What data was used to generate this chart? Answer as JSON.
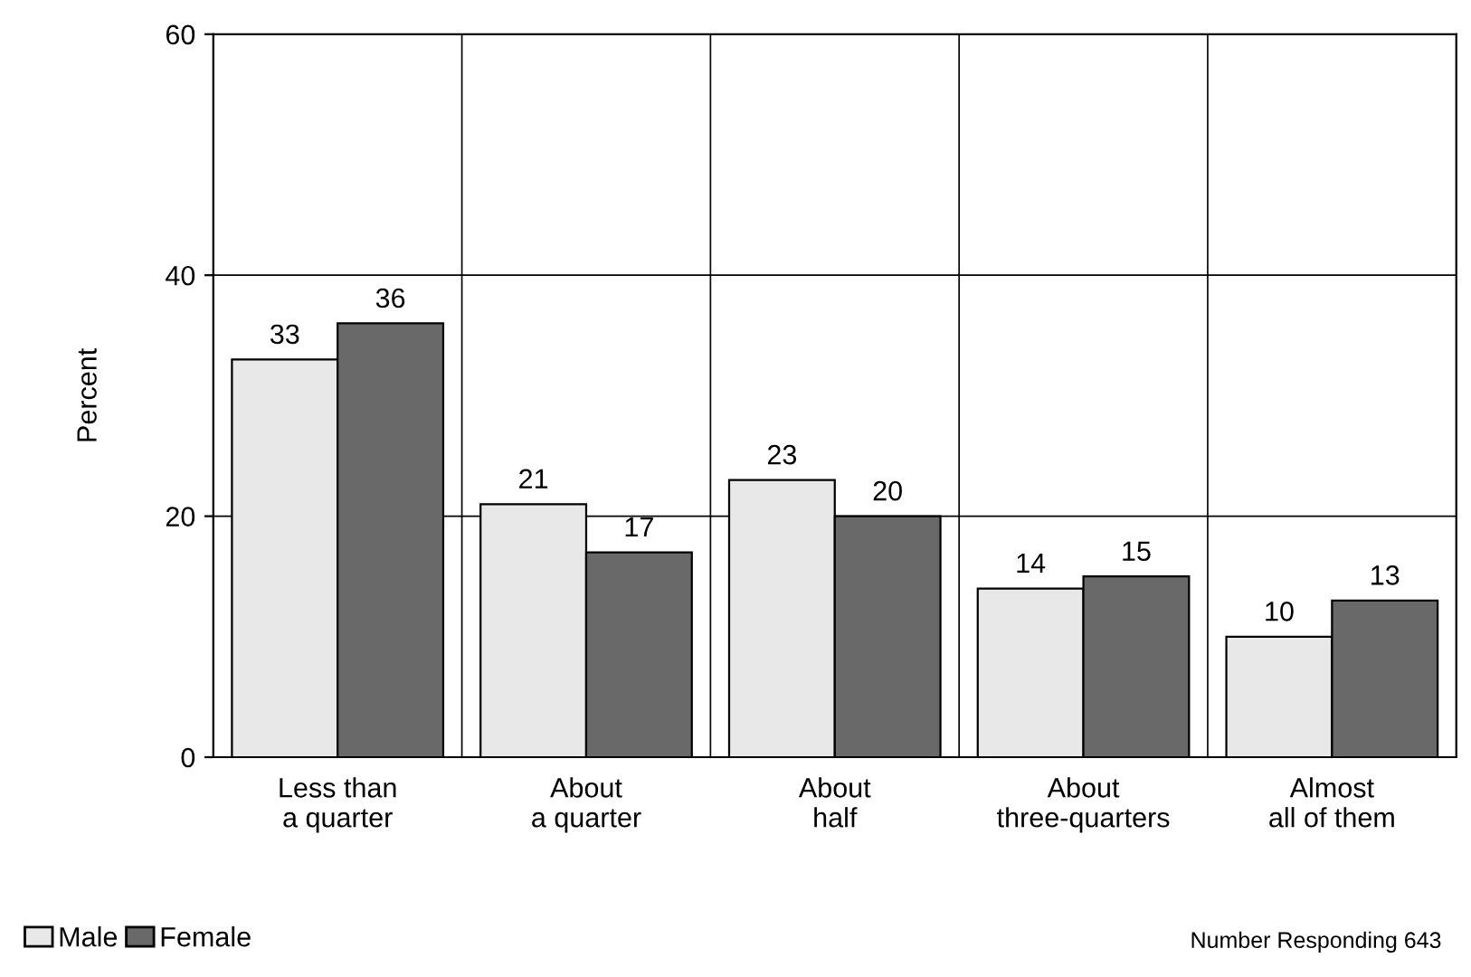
{
  "chart_data": {
    "type": "bar",
    "ylabel": "Percent",
    "categories": [
      "Less than\na quarter",
      "About\na quarter",
      "About\nhalf",
      "About\nthree-quarters",
      "Almost\nall of them"
    ],
    "series": [
      {
        "name": "Male",
        "color": "#e8e8e8",
        "values": [
          33,
          21,
          23,
          14,
          10
        ]
      },
      {
        "name": "Female",
        "color": "#696969",
        "values": [
          36,
          17,
          20,
          15,
          13
        ]
      }
    ],
    "ylim": [
      0,
      60
    ],
    "yticks": [
      0,
      20,
      40,
      60
    ],
    "grid": true,
    "data_labels": true,
    "legend": "bottom left",
    "annotations": [
      "Number Responding 643"
    ]
  }
}
